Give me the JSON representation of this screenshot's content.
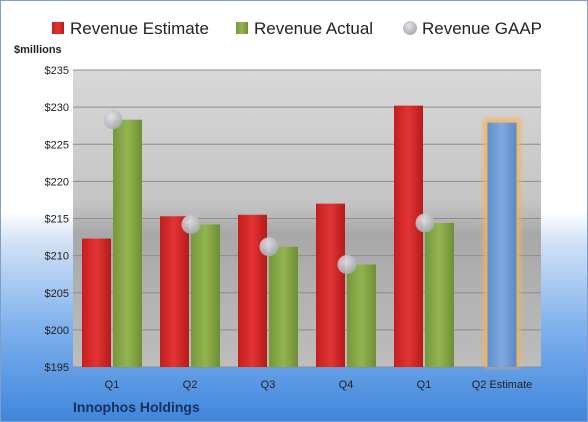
{
  "chart_data": {
    "type": "bar",
    "unit_label": "$millions",
    "company": "Innophos Holdings",
    "categories": [
      "Q1",
      "Q2",
      "Q3",
      "Q4",
      "Q1",
      "Q2 Estimate"
    ],
    "series": [
      {
        "name": "Revenue Estimate",
        "kind": "bar",
        "color": "#d42a2a",
        "values": [
          212.3,
          215.3,
          215.5,
          217.0,
          230.2,
          null
        ]
      },
      {
        "name": "Revenue Actual",
        "kind": "bar",
        "color": "#86a845",
        "values": [
          228.3,
          214.2,
          211.2,
          208.8,
          214.4,
          null
        ]
      },
      {
        "name": "Revenue GAAP",
        "kind": "marker",
        "color": "#b9bcc4",
        "values": [
          228.3,
          214.2,
          211.2,
          208.8,
          214.4,
          null
        ]
      },
      {
        "name": "Q2 Estimate",
        "kind": "bar",
        "color": "#6f9fd8",
        "highlight": "#f5b25a",
        "show_in_legend": false,
        "values": [
          null,
          null,
          null,
          null,
          null,
          227.9
        ]
      }
    ],
    "y_ticks": [
      "$195",
      "$200",
      "$205",
      "$210",
      "$215",
      "$220",
      "$225",
      "$230",
      "$235"
    ],
    "ylim": [
      195,
      235
    ],
    "grid": true,
    "legend_position": "top"
  }
}
